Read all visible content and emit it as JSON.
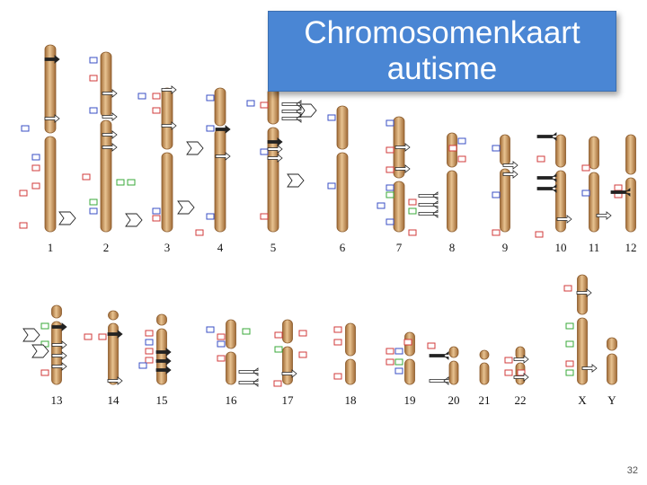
{
  "title": {
    "line1": "Chromosomenkaart",
    "line2": "autisme"
  },
  "page_number": "32",
  "chromosome_labels": [
    "1",
    "2",
    "3",
    "4",
    "5",
    "6",
    "7",
    "8",
    "9",
    "10",
    "11",
    "12",
    "13",
    "14",
    "15",
    "16",
    "17",
    "18",
    "19",
    "20",
    "21",
    "22",
    "X",
    "Y"
  ],
  "colors": {
    "chromosome_fill": "#c9955a",
    "chromosome_highlight": "#e8c391",
    "chromosome_border": "#8a5a2b",
    "red_box": "#d23b3b",
    "blue_box": "#3a4fc4",
    "green_box": "#3aa83a",
    "arrow": "#222222",
    "title_background": "#4a86d4"
  }
}
